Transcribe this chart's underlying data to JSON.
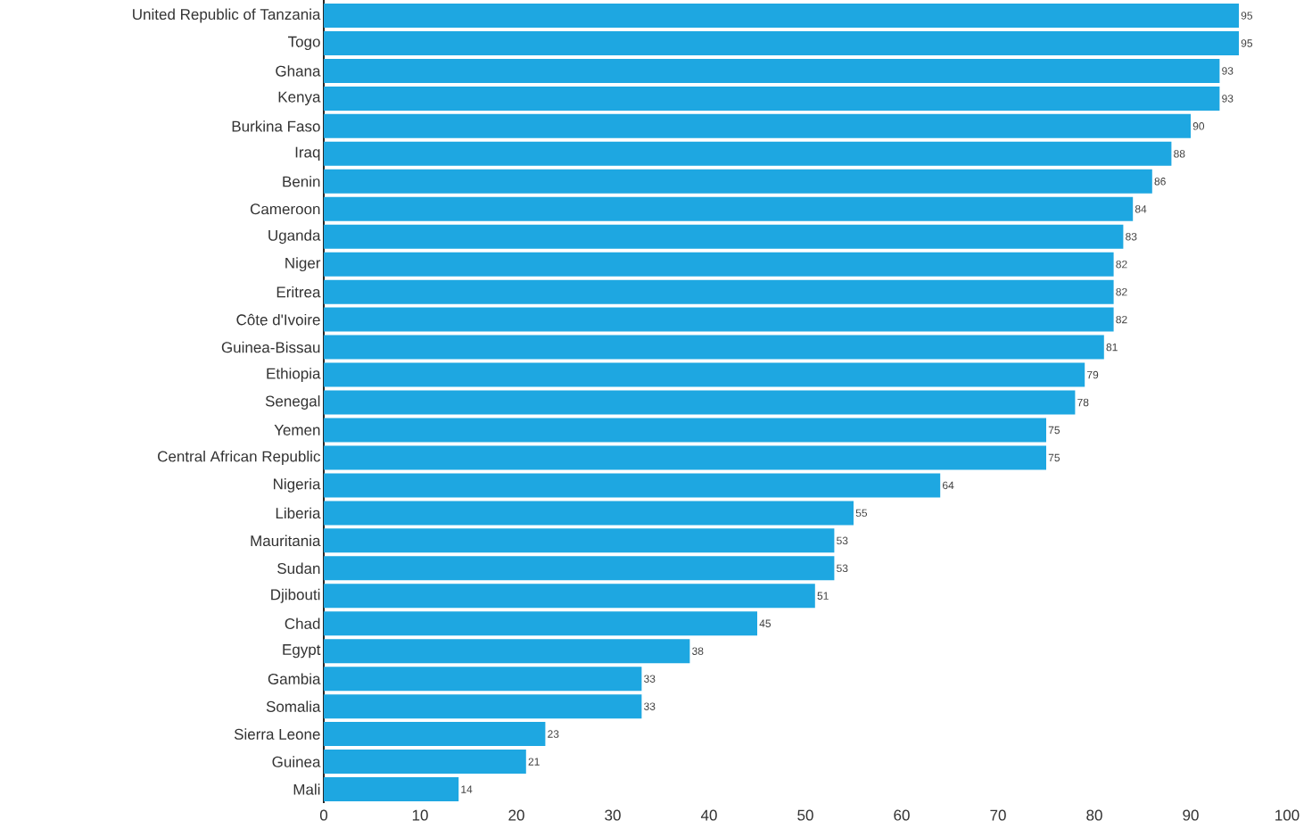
{
  "chart_data": {
    "type": "bar",
    "orientation": "horizontal",
    "categories": [
      "United Republic of Tanzania",
      "Togo",
      "Ghana",
      "Kenya",
      "Burkina Faso",
      "Iraq",
      "Benin",
      "Cameroon",
      "Uganda",
      "Niger",
      "Eritrea",
      "Côte d'Ivoire",
      "Guinea-Bissau",
      "Ethiopia",
      "Senegal",
      "Yemen",
      "Central African Republic",
      "Nigeria",
      "Liberia",
      "Mauritania",
      "Sudan",
      "Djibouti",
      "Chad",
      "Egypt",
      "Gambia",
      "Somalia",
      "Sierra Leone",
      "Guinea",
      "Mali"
    ],
    "values": [
      95,
      95,
      93,
      93,
      90,
      88,
      86,
      84,
      83,
      82,
      82,
      82,
      81,
      79,
      78,
      75,
      75,
      64,
      55,
      53,
      53,
      51,
      45,
      38,
      33,
      33,
      23,
      21,
      14
    ],
    "color": "#1ea7e1",
    "data_labels": true,
    "grid": false,
    "xlim": [
      0,
      100
    ],
    "xticks": [
      0,
      10,
      20,
      30,
      40,
      50,
      60,
      70,
      80,
      90,
      100
    ]
  }
}
